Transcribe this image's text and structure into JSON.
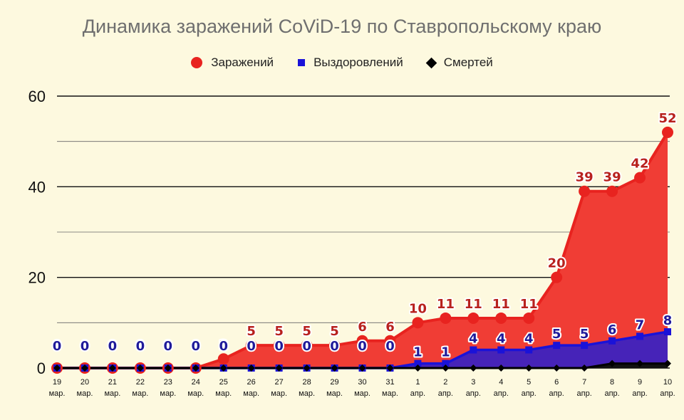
{
  "chart_data": {
    "type": "area",
    "title": "Динамика заражений CoViD-19 по Ставропольскому краю",
    "categories": [
      [
        "19",
        "мар."
      ],
      [
        "20",
        "мар."
      ],
      [
        "21",
        "мар."
      ],
      [
        "22",
        "мар."
      ],
      [
        "23",
        "мар."
      ],
      [
        "24",
        "мар."
      ],
      [
        "25",
        "мар."
      ],
      [
        "26",
        "мар."
      ],
      [
        "27",
        "мар."
      ],
      [
        "28",
        "мар."
      ],
      [
        "29",
        "мар."
      ],
      [
        "30",
        "мар."
      ],
      [
        "31",
        "мар."
      ],
      [
        "1",
        "апр."
      ],
      [
        "2",
        "апр."
      ],
      [
        "3",
        "апр."
      ],
      [
        "4",
        "апр."
      ],
      [
        "5",
        "апр."
      ],
      [
        "6",
        "апр."
      ],
      [
        "7",
        "апр."
      ],
      [
        "8",
        "апр."
      ],
      [
        "9",
        "апр."
      ],
      [
        "10",
        "апр."
      ]
    ],
    "series": [
      {
        "name": "Заражений",
        "color": "#e8231f",
        "marker": "circle",
        "values": [
          0,
          0,
          0,
          0,
          0,
          0,
          2,
          5,
          5,
          5,
          5,
          6,
          6,
          10,
          11,
          11,
          11,
          11,
          20,
          39,
          39,
          42,
          52
        ],
        "labels": [
          "0",
          "0",
          "0",
          "0",
          "0",
          "0",
          "2",
          "5",
          "5",
          "5",
          "5",
          "6",
          "6",
          "10",
          "11",
          "11",
          "11",
          "11",
          "20",
          "39",
          "39",
          "42",
          "52"
        ]
      },
      {
        "name": "Выздоровлений",
        "color": "#1a12d8",
        "marker": "square",
        "values": [
          0,
          0,
          0,
          0,
          0,
          0,
          0,
          0,
          0,
          0,
          0,
          0,
          0,
          1,
          1,
          4,
          4,
          4,
          5,
          5,
          6,
          7,
          8
        ],
        "labels": [
          "0",
          "0",
          "0",
          "0",
          "0",
          "0",
          "0",
          "0",
          "0",
          "0",
          "0",
          "0",
          "0",
          "1",
          "1",
          "4",
          "4",
          "4",
          "5",
          "5",
          "6",
          "7",
          "8"
        ]
      },
      {
        "name": "Смертей",
        "color": "#000000",
        "marker": "diamond",
        "values": [
          0,
          0,
          0,
          0,
          0,
          0,
          0,
          0,
          0,
          0,
          0,
          0,
          0,
          0,
          0,
          0,
          0,
          0,
          0,
          0,
          1,
          1,
          1
        ]
      }
    ],
    "ylim": [
      0,
      60
    ],
    "yticks": [
      0,
      20,
      40,
      60
    ],
    "grid": true,
    "legend": "top"
  }
}
